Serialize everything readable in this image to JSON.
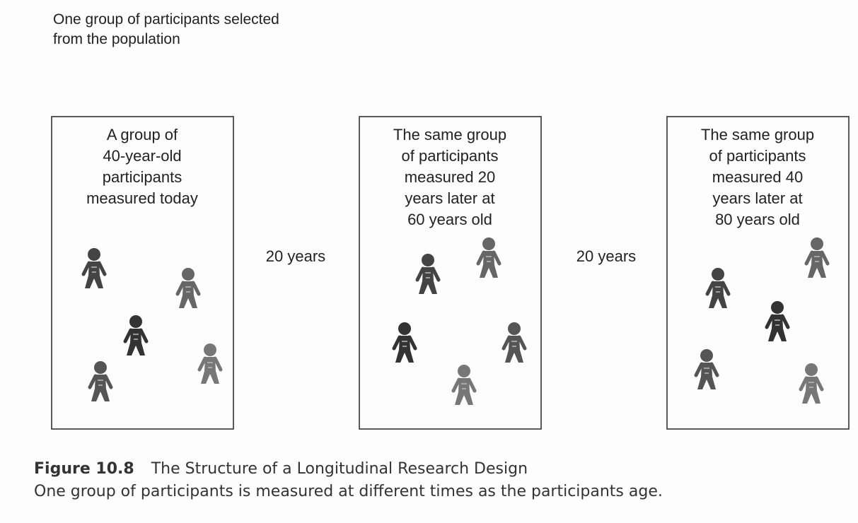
{
  "header": {
    "lines": [
      "One group of participants selected",
      "from the population"
    ]
  },
  "stages": [
    {
      "lines": [
        "A group of",
        "40-year-old",
        "participants",
        "measured today"
      ]
    },
    {
      "lines": [
        "The same group",
        "of participants",
        "measured 20",
        "years later at",
        "60 years old"
      ]
    },
    {
      "lines": [
        "The same group",
        "of participants",
        "measured 40",
        "years later at",
        "80 years old"
      ]
    }
  ],
  "intervals": [
    "20 years",
    "20 years"
  ],
  "caption": {
    "label": "Figure 10.8",
    "title": "The Structure of a Longitudinal Research Design",
    "description": "One group of participants is measured at different times as the participants age."
  }
}
